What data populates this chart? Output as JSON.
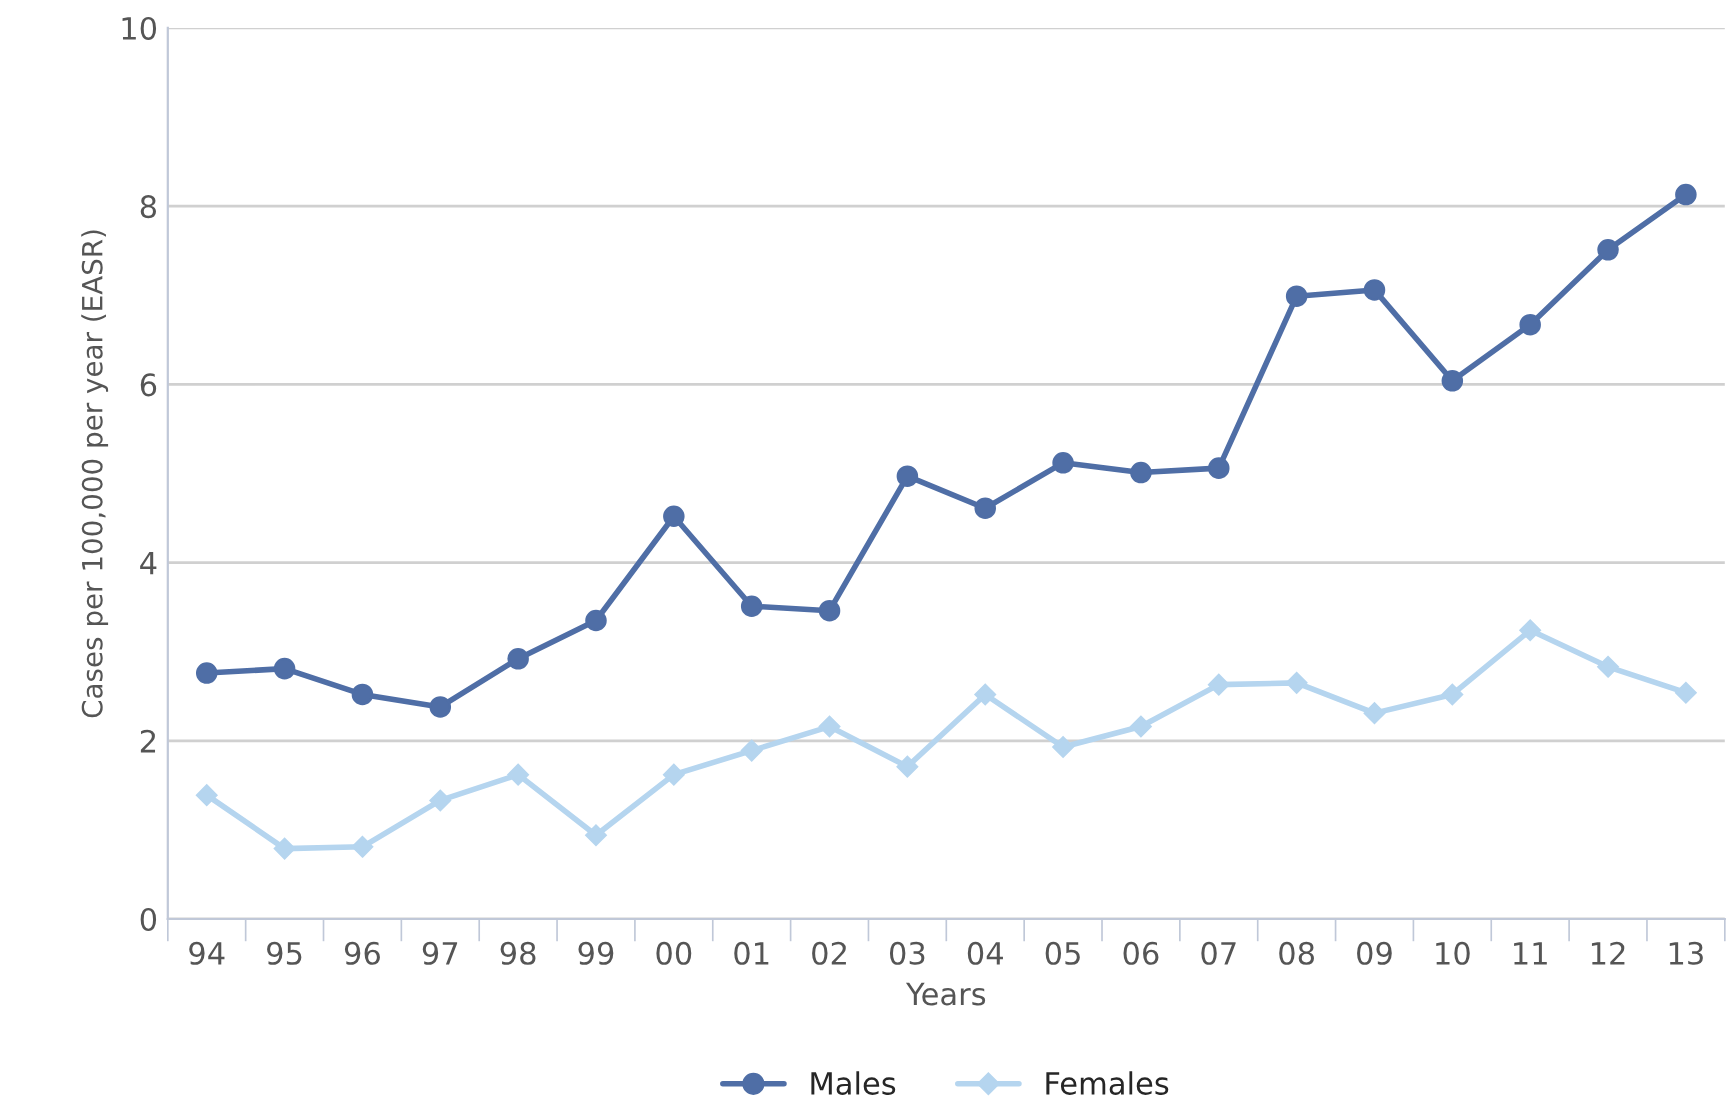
{
  "chart_data": {
    "type": "line",
    "xlabel": "Years",
    "ylabel": "Cases per 100,000 per year (EASR)",
    "categories": [
      "94",
      "95",
      "96",
      "97",
      "98",
      "99",
      "00",
      "01",
      "02",
      "03",
      "04",
      "05",
      "06",
      "07",
      "08",
      "09",
      "10",
      "11",
      "12",
      "13"
    ],
    "series": [
      {
        "name": "Males",
        "color": "#4f6ea6",
        "marker": "circle",
        "values": [
          2.76,
          2.81,
          2.52,
          2.38,
          2.92,
          3.35,
          4.52,
          3.51,
          3.46,
          4.97,
          4.61,
          5.12,
          5.01,
          5.06,
          6.99,
          7.06,
          6.04,
          6.67,
          7.51,
          8.13
        ]
      },
      {
        "name": "Females",
        "color": "#b5d5ef",
        "marker": "diamond",
        "values": [
          1.39,
          0.79,
          0.81,
          1.33,
          1.62,
          0.94,
          1.62,
          1.89,
          2.16,
          1.71,
          2.52,
          1.93,
          2.16,
          2.63,
          2.65,
          2.31,
          2.52,
          3.24,
          2.83,
          2.54
        ]
      }
    ],
    "ylim": [
      0,
      10
    ],
    "yticks": [
      0,
      2,
      4,
      6,
      8,
      10
    ],
    "grid": "y",
    "legend": "bottom",
    "line_style": "solid"
  }
}
